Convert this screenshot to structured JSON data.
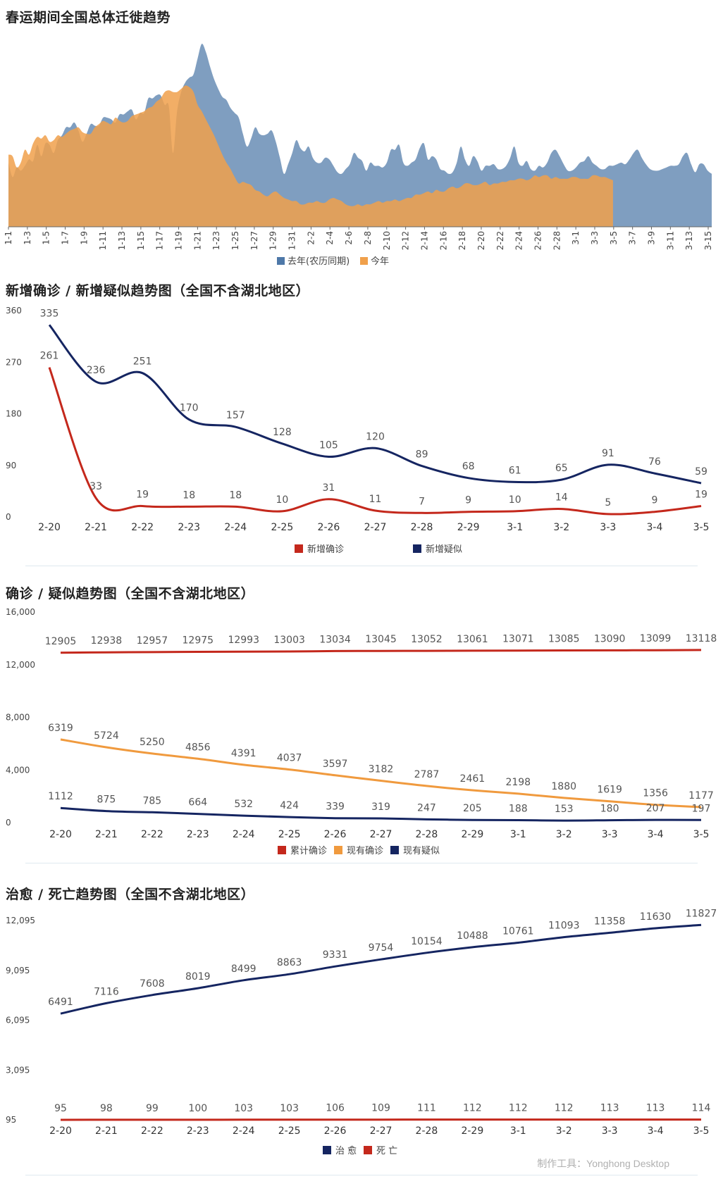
{
  "chart_data": [
    {
      "type": "area",
      "title": "春运期间全国总体迁徙趋势",
      "legend_position": "bottom",
      "x_ticks": [
        "1-1",
        "1-3",
        "1-5",
        "1-7",
        "1-9",
        "1-11",
        "1-13",
        "1-15",
        "1-17",
        "1-19",
        "1-21",
        "1-23",
        "1-25",
        "1-27",
        "1-29",
        "1-31",
        "2-2",
        "2-4",
        "2-6",
        "2-8",
        "2-10",
        "2-12",
        "2-14",
        "2-16",
        "2-18",
        "2-20",
        "2-22",
        "2-24",
        "2-26",
        "2-28",
        "3-1",
        "3-3",
        "3-5",
        "3-7",
        "3-9",
        "3-11",
        "3-13",
        "3-15"
      ],
      "series": [
        {
          "name": "去年(农历同期)",
          "color": "#4e78a8",
          "values": [
            40,
            31,
            37,
            35,
            38,
            42,
            41,
            51,
            44,
            52,
            51,
            46,
            54,
            57,
            62,
            62,
            65,
            60,
            53,
            58,
            64,
            63,
            63,
            68,
            68,
            67,
            65,
            70,
            70,
            72,
            73,
            67,
            71,
            71,
            80,
            80,
            82,
            82,
            76,
            75,
            46,
            72,
            84,
            90,
            93,
            95,
            105,
            114,
            109,
            100,
            92,
            86,
            81,
            79,
            74,
            71,
            68,
            58,
            50,
            55,
            62,
            58,
            57,
            58,
            60,
            53,
            43,
            33,
            39,
            46,
            54,
            49,
            47,
            50,
            43,
            40,
            40,
            43,
            42,
            38,
            34,
            33,
            36,
            39,
            46,
            43,
            41,
            35,
            40,
            38,
            38,
            37,
            40,
            48,
            48,
            51,
            40,
            38,
            40,
            42,
            49,
            52,
            42,
            44,
            42,
            36,
            35,
            33,
            34,
            40,
            50,
            42,
            38,
            44,
            41,
            35,
            38,
            38,
            39,
            36,
            36,
            38,
            43,
            50,
            40,
            38,
            41,
            36,
            35,
            38,
            37,
            40,
            46,
            48,
            44,
            39,
            35,
            35,
            37,
            40,
            41,
            44,
            40,
            38,
            36,
            36,
            38,
            38,
            39,
            40,
            39,
            42,
            46,
            48,
            43,
            39,
            36,
            35,
            35,
            36,
            37,
            38,
            38,
            39,
            44,
            46,
            39,
            34,
            39,
            39,
            35,
            33
          ]
        },
        {
          "name": "今年",
          "color": "#f0a04b",
          "values": [
            45,
            44,
            37,
            40,
            48,
            45,
            52,
            56,
            55,
            57,
            53,
            54,
            57,
            56,
            58,
            60,
            61,
            62,
            59,
            58,
            58,
            62,
            64,
            66,
            65,
            64,
            68,
            66,
            65,
            66,
            69,
            70,
            71,
            72,
            74,
            75,
            78,
            80,
            84,
            85,
            84,
            84,
            86,
            88,
            87,
            84,
            76,
            72,
            67,
            62,
            57,
            51,
            45,
            40,
            36,
            31,
            27,
            28,
            27,
            26,
            23,
            22,
            20,
            19,
            21,
            22,
            20,
            18,
            17,
            16,
            16,
            14,
            14,
            15,
            15,
            16,
            15,
            15,
            17,
            18,
            17,
            16,
            14,
            13,
            13,
            14,
            13,
            14,
            14,
            15,
            16,
            15,
            16,
            16,
            17,
            16,
            17,
            18,
            18,
            20,
            20,
            21,
            22,
            21,
            23,
            22,
            22,
            24,
            25,
            24,
            25,
            27,
            27,
            26,
            26,
            27,
            28,
            26,
            27,
            27,
            28,
            28,
            29,
            29,
            30,
            30,
            29,
            30,
            32,
            31,
            32,
            32,
            30,
            31,
            30,
            30,
            30,
            31,
            31,
            30,
            30,
            30,
            32,
            32,
            31,
            31,
            30,
            29
          ]
        }
      ]
    },
    {
      "type": "line",
      "title": "新增确诊 / 新增疑似趋势图（全国不含湖北地区）",
      "categories": [
        "2-20",
        "2-21",
        "2-22",
        "2-23",
        "2-24",
        "2-25",
        "2-26",
        "2-27",
        "2-28",
        "2-29",
        "3-1",
        "3-2",
        "3-3",
        "3-4",
        "3-5"
      ],
      "y_ticks": [
        "360",
        "270",
        "180",
        "90",
        "0"
      ],
      "ylim": [
        0,
        360
      ],
      "legend_position": "bottom",
      "series": [
        {
          "name": "新增确诊",
          "color": "#c4281c",
          "values": [
            261,
            33,
            19,
            18,
            18,
            10,
            31,
            11,
            7,
            9,
            10,
            14,
            5,
            9,
            19
          ]
        },
        {
          "name": "新增疑似",
          "color": "#152561",
          "values": [
            335,
            236,
            251,
            170,
            157,
            128,
            105,
            120,
            89,
            68,
            61,
            65,
            91,
            76,
            59
          ]
        }
      ]
    },
    {
      "type": "line",
      "title": "确诊 / 疑似趋势图（全国不含湖北地区）",
      "categories": [
        "2-20",
        "2-21",
        "2-22",
        "2-23",
        "2-24",
        "2-25",
        "2-26",
        "2-27",
        "2-28",
        "2-29",
        "3-1",
        "3-2",
        "3-3",
        "3-4",
        "3-5"
      ],
      "y_ticks": [
        "16,000",
        "12,000",
        "8,000",
        "4,000",
        "0"
      ],
      "ylim": [
        0,
        16000
      ],
      "legend_position": "bottom",
      "series": [
        {
          "name": "累计确诊",
          "color": "#c4281c",
          "values": [
            12905,
            12938,
            12957,
            12975,
            12993,
            13003,
            13034,
            13045,
            13052,
            13061,
            13071,
            13085,
            13090,
            13099,
            13118
          ]
        },
        {
          "name": "现有确诊",
          "color": "#f09a3e",
          "values": [
            6319,
            5724,
            5250,
            4856,
            4391,
            4037,
            3597,
            3182,
            2787,
            2461,
            2198,
            1880,
            1619,
            1356,
            1177
          ]
        },
        {
          "name": "现有疑似",
          "color": "#152561",
          "values": [
            1112,
            875,
            785,
            664,
            532,
            424,
            339,
            319,
            247,
            205,
            188,
            153,
            180,
            207,
            197
          ]
        }
      ]
    },
    {
      "type": "line",
      "title": "治愈 / 死亡趋势图（全国不含湖北地区）",
      "categories": [
        "2-20",
        "2-21",
        "2-22",
        "2-23",
        "2-24",
        "2-25",
        "2-26",
        "2-27",
        "2-28",
        "2-29",
        "3-1",
        "3-2",
        "3-3",
        "3-4",
        "3-5"
      ],
      "y_ticks": [
        "12,095",
        "9,095",
        "6,095",
        "3,095",
        "95"
      ],
      "ylim": [
        95,
        12095
      ],
      "legend_position": "bottom",
      "series": [
        {
          "name": "治 愈",
          "color": "#152561",
          "values": [
            6491,
            7116,
            7608,
            8019,
            8499,
            8863,
            9331,
            9754,
            10154,
            10488,
            10761,
            11093,
            11358,
            11630,
            11827
          ]
        },
        {
          "name": "死 亡",
          "color": "#c4281c",
          "values": [
            95,
            98,
            99,
            100,
            103,
            103,
            106,
            109,
            111,
            112,
            112,
            112,
            113,
            113,
            114
          ]
        }
      ]
    }
  ],
  "footer": {
    "credit": "制作工具：Yonghong Desktop"
  }
}
